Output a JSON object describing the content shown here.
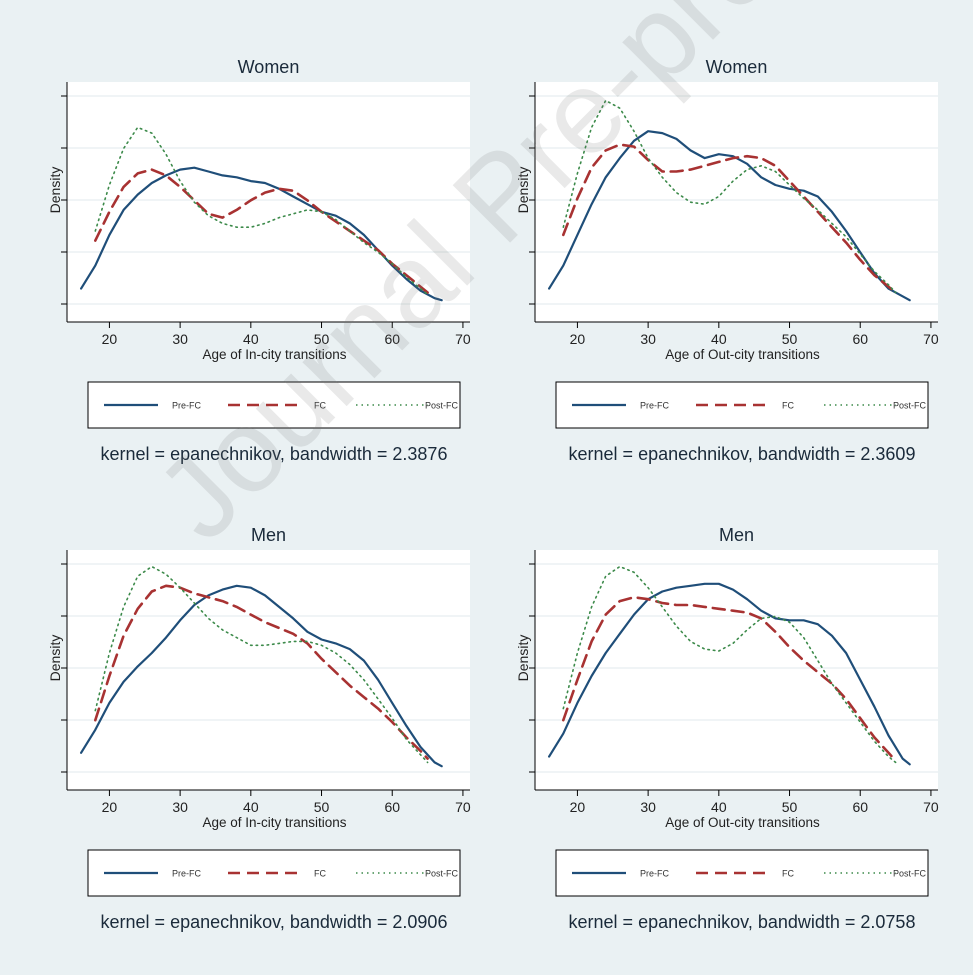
{
  "watermark": "Journal Pre-proof",
  "colors": {
    "background": "#eaf1f3",
    "plot_bg": "#ffffff",
    "pre_fc": "#1f4e79",
    "fc": "#a83232",
    "post_fc": "#3c8a4a",
    "grid": "#e6eef0"
  },
  "chart_data": [
    {
      "type": "line",
      "title": "Women",
      "xlabel": "Age of In-city transitions",
      "ylabel": "Density",
      "xticks": [
        20,
        30,
        40,
        50,
        60,
        70
      ],
      "xlim": [
        14,
        71
      ],
      "ylim": [
        0,
        1
      ],
      "grid": true,
      "legend_position": "bottom",
      "footer": "kernel = epanechnikov, bandwidth = 2.3876",
      "series": [
        {
          "name": "Pre-FC",
          "style": "solid",
          "x": [
            16,
            18,
            20,
            22,
            24,
            26,
            28,
            30,
            32,
            34,
            36,
            38,
            40,
            42,
            44,
            46,
            48,
            50,
            52,
            54,
            56,
            58,
            60,
            62,
            64,
            66,
            67
          ],
          "y": [
            0.08,
            0.2,
            0.36,
            0.49,
            0.57,
            0.63,
            0.67,
            0.7,
            0.71,
            0.69,
            0.67,
            0.66,
            0.64,
            0.63,
            0.6,
            0.56,
            0.52,
            0.48,
            0.46,
            0.42,
            0.36,
            0.28,
            0.2,
            0.13,
            0.07,
            0.03,
            0.02
          ]
        },
        {
          "name": "FC",
          "style": "dash",
          "x": [
            18,
            20,
            22,
            24,
            26,
            28,
            30,
            32,
            34,
            36,
            38,
            40,
            42,
            44,
            46,
            48,
            50,
            52,
            54,
            56,
            58,
            60,
            62,
            64,
            65
          ],
          "y": [
            0.33,
            0.48,
            0.61,
            0.68,
            0.7,
            0.67,
            0.61,
            0.54,
            0.47,
            0.45,
            0.49,
            0.54,
            0.58,
            0.6,
            0.59,
            0.54,
            0.48,
            0.43,
            0.38,
            0.33,
            0.28,
            0.21,
            0.15,
            0.09,
            0.06
          ]
        },
        {
          "name": "Post-FC",
          "style": "dot",
          "x": [
            18,
            20,
            22,
            24,
            26,
            28,
            30,
            32,
            34,
            36,
            38,
            40,
            42,
            44,
            46,
            48,
            50,
            52,
            54,
            56,
            58,
            60,
            62,
            64,
            65
          ],
          "y": [
            0.38,
            0.62,
            0.81,
            0.92,
            0.89,
            0.78,
            0.64,
            0.53,
            0.46,
            0.42,
            0.4,
            0.4,
            0.42,
            0.45,
            0.47,
            0.49,
            0.48,
            0.44,
            0.38,
            0.32,
            0.27,
            0.21,
            0.14,
            0.08,
            0.05
          ]
        }
      ]
    },
    {
      "type": "line",
      "title": "Women",
      "xlabel": "Age of Out-city transitions",
      "ylabel": "Density",
      "xticks": [
        20,
        30,
        40,
        50,
        60,
        70
      ],
      "xlim": [
        14,
        71
      ],
      "ylim": [
        0,
        1
      ],
      "grid": true,
      "legend_position": "bottom",
      "footer": "kernel = epanechnikov, bandwidth = 2.3609",
      "series": [
        {
          "name": "Pre-FC",
          "style": "solid",
          "x": [
            16,
            18,
            20,
            22,
            24,
            26,
            28,
            30,
            32,
            34,
            36,
            38,
            40,
            42,
            44,
            46,
            48,
            50,
            52,
            54,
            56,
            58,
            60,
            62,
            64,
            66,
            67
          ],
          "y": [
            0.08,
            0.2,
            0.36,
            0.52,
            0.66,
            0.76,
            0.85,
            0.9,
            0.89,
            0.86,
            0.8,
            0.76,
            0.78,
            0.77,
            0.73,
            0.66,
            0.62,
            0.6,
            0.59,
            0.56,
            0.48,
            0.38,
            0.27,
            0.16,
            0.08,
            0.04,
            0.02
          ]
        },
        {
          "name": "FC",
          "style": "dash",
          "x": [
            18,
            20,
            22,
            24,
            26,
            28,
            30,
            32,
            34,
            36,
            38,
            40,
            42,
            44,
            46,
            48,
            50,
            52,
            54,
            56,
            58,
            60,
            62,
            64,
            65
          ],
          "y": [
            0.36,
            0.55,
            0.71,
            0.8,
            0.83,
            0.82,
            0.75,
            0.69,
            0.69,
            0.7,
            0.72,
            0.74,
            0.76,
            0.77,
            0.76,
            0.72,
            0.64,
            0.56,
            0.48,
            0.4,
            0.32,
            0.23,
            0.15,
            0.09,
            0.06
          ]
        },
        {
          "name": "Post-FC",
          "style": "dot",
          "x": [
            18,
            20,
            22,
            24,
            26,
            28,
            30,
            32,
            34,
            36,
            38,
            40,
            42,
            44,
            46,
            48,
            50,
            52,
            54,
            56,
            58,
            60,
            62,
            64,
            65
          ],
          "y": [
            0.4,
            0.68,
            0.92,
            1.06,
            1.02,
            0.9,
            0.76,
            0.66,
            0.58,
            0.53,
            0.52,
            0.56,
            0.64,
            0.7,
            0.72,
            0.69,
            0.62,
            0.55,
            0.49,
            0.42,
            0.35,
            0.26,
            0.17,
            0.1,
            0.06
          ]
        }
      ]
    },
    {
      "type": "line",
      "title": "Men",
      "xlabel": "Age of In-city transitions",
      "ylabel": "Density",
      "xticks": [
        20,
        30,
        40,
        50,
        60,
        70
      ],
      "xlim": [
        14,
        71
      ],
      "ylim": [
        0,
        1
      ],
      "grid": true,
      "legend_position": "bottom",
      "footer": "kernel = epanechnikov, bandwidth = 2.0906",
      "series": [
        {
          "name": "Pre-FC",
          "style": "solid",
          "x": [
            16,
            18,
            20,
            22,
            24,
            26,
            28,
            30,
            32,
            34,
            36,
            38,
            40,
            42,
            44,
            46,
            48,
            50,
            52,
            54,
            56,
            58,
            60,
            62,
            64,
            66,
            67
          ],
          "y": [
            0.1,
            0.22,
            0.36,
            0.47,
            0.55,
            0.62,
            0.7,
            0.79,
            0.87,
            0.92,
            0.95,
            0.97,
            0.96,
            0.92,
            0.86,
            0.8,
            0.73,
            0.69,
            0.67,
            0.64,
            0.58,
            0.48,
            0.36,
            0.24,
            0.13,
            0.05,
            0.03
          ]
        },
        {
          "name": "FC",
          "style": "dash",
          "x": [
            18,
            20,
            22,
            24,
            26,
            28,
            30,
            32,
            34,
            36,
            38,
            40,
            42,
            44,
            46,
            48,
            50,
            52,
            54,
            56,
            58,
            60,
            62,
            64,
            65
          ],
          "y": [
            0.27,
            0.5,
            0.71,
            0.85,
            0.94,
            0.97,
            0.96,
            0.93,
            0.91,
            0.89,
            0.86,
            0.82,
            0.78,
            0.75,
            0.72,
            0.67,
            0.59,
            0.52,
            0.45,
            0.39,
            0.33,
            0.26,
            0.18,
            0.11,
            0.07
          ]
        },
        {
          "name": "Post-FC",
          "style": "dot",
          "x": [
            18,
            20,
            22,
            24,
            26,
            28,
            30,
            32,
            34,
            36,
            38,
            40,
            42,
            44,
            46,
            48,
            50,
            52,
            54,
            56,
            58,
            60,
            62,
            64,
            65
          ],
          "y": [
            0.32,
            0.62,
            0.86,
            1.02,
            1.07,
            1.03,
            0.96,
            0.88,
            0.8,
            0.74,
            0.7,
            0.66,
            0.66,
            0.67,
            0.68,
            0.68,
            0.66,
            0.62,
            0.56,
            0.48,
            0.38,
            0.28,
            0.17,
            0.09,
            0.05
          ]
        }
      ]
    },
    {
      "type": "line",
      "title": "Men",
      "xlabel": "Age of Out-city transitions",
      "ylabel": "Density",
      "xticks": [
        20,
        30,
        40,
        50,
        60,
        70
      ],
      "xlim": [
        14,
        71
      ],
      "ylim": [
        0,
        1
      ],
      "grid": true,
      "legend_position": "bottom",
      "footer": "kernel = epanechnikov, bandwidth = 2.0758",
      "series": [
        {
          "name": "Pre-FC",
          "style": "solid",
          "x": [
            16,
            18,
            20,
            22,
            24,
            26,
            28,
            30,
            32,
            34,
            36,
            38,
            40,
            42,
            44,
            46,
            48,
            50,
            52,
            54,
            56,
            58,
            60,
            62,
            64,
            66,
            67
          ],
          "y": [
            0.08,
            0.2,
            0.36,
            0.5,
            0.62,
            0.72,
            0.82,
            0.9,
            0.94,
            0.96,
            0.97,
            0.98,
            0.98,
            0.95,
            0.9,
            0.84,
            0.8,
            0.79,
            0.79,
            0.77,
            0.71,
            0.62,
            0.48,
            0.34,
            0.19,
            0.07,
            0.04
          ]
        },
        {
          "name": "FC",
          "style": "dash",
          "x": [
            18,
            20,
            22,
            24,
            26,
            28,
            30,
            32,
            34,
            36,
            38,
            40,
            42,
            44,
            46,
            48,
            50,
            52,
            54,
            56,
            58,
            60,
            62,
            64,
            65
          ],
          "y": [
            0.27,
            0.48,
            0.68,
            0.82,
            0.89,
            0.91,
            0.9,
            0.88,
            0.87,
            0.87,
            0.86,
            0.85,
            0.84,
            0.83,
            0.8,
            0.73,
            0.65,
            0.58,
            0.52,
            0.46,
            0.38,
            0.28,
            0.18,
            0.1,
            0.06
          ]
        },
        {
          "name": "Post-FC",
          "style": "dot",
          "x": [
            18,
            20,
            22,
            24,
            26,
            28,
            30,
            32,
            34,
            36,
            38,
            40,
            42,
            44,
            46,
            48,
            50,
            52,
            54,
            56,
            58,
            60,
            62,
            64,
            65
          ],
          "y": [
            0.33,
            0.62,
            0.86,
            1.02,
            1.07,
            1.04,
            0.96,
            0.86,
            0.76,
            0.68,
            0.64,
            0.63,
            0.67,
            0.74,
            0.8,
            0.81,
            0.78,
            0.7,
            0.58,
            0.46,
            0.36,
            0.26,
            0.16,
            0.08,
            0.05
          ]
        }
      ]
    }
  ]
}
